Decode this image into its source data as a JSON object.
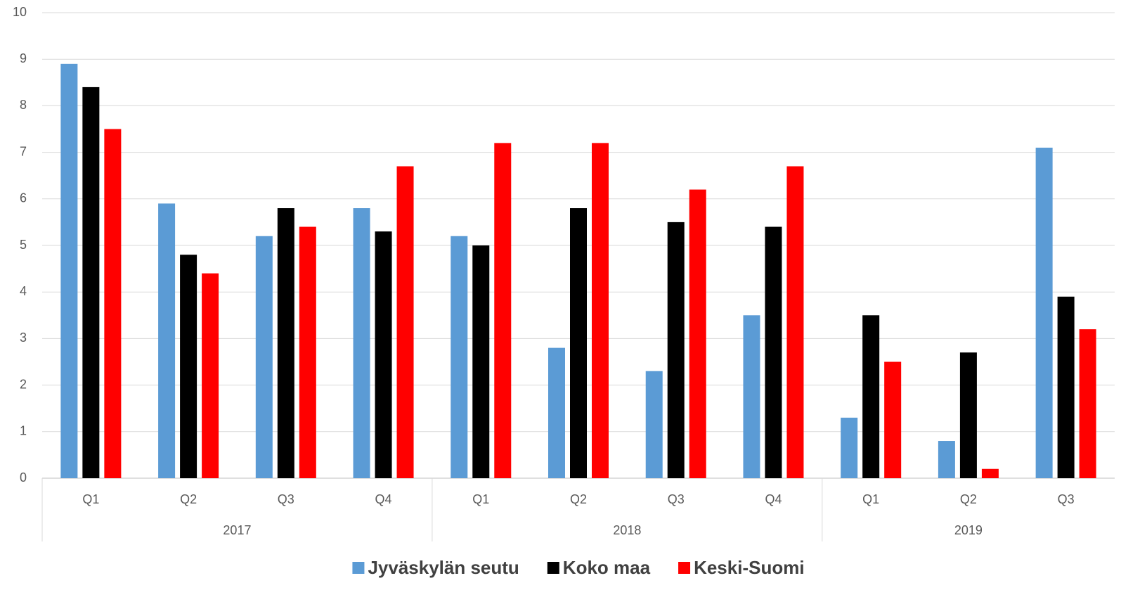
{
  "chart_data": {
    "type": "bar",
    "groups": [
      {
        "name": "2017",
        "categories": [
          "Q1",
          "Q2",
          "Q3",
          "Q4"
        ]
      },
      {
        "name": "2018",
        "categories": [
          "Q1",
          "Q2",
          "Q3",
          "Q4"
        ]
      },
      {
        "name": "2019",
        "categories": [
          "Q1",
          "Q2",
          "Q3"
        ]
      }
    ],
    "series": [
      {
        "name": "Jyväskylän seutu",
        "color": "#5b9bd5",
        "values": [
          8.9,
          5.9,
          5.2,
          5.8,
          5.2,
          2.8,
          2.3,
          3.5,
          1.3,
          0.8,
          7.1
        ]
      },
      {
        "name": "Koko maa",
        "color": "#000000",
        "values": [
          8.4,
          4.8,
          5.8,
          5.3,
          5.0,
          5.8,
          5.5,
          5.4,
          3.5,
          2.7,
          3.9
        ]
      },
      {
        "name": "Keski-Suomi",
        "color": "#ff0000",
        "values": [
          7.5,
          4.4,
          5.4,
          6.7,
          7.2,
          7.2,
          6.2,
          6.7,
          2.5,
          0.2,
          3.2
        ]
      }
    ],
    "ylim": [
      0,
      10
    ],
    "yticks": [
      0,
      1,
      2,
      3,
      4,
      5,
      6,
      7,
      8,
      9,
      10
    ],
    "grid": true,
    "legend": "bottom"
  }
}
